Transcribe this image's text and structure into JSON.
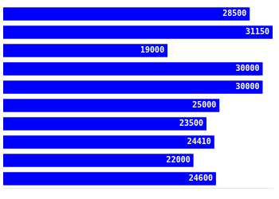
{
  "chart_data": {
    "type": "bar",
    "orientation": "horizontal",
    "categories": [
      null,
      null,
      null,
      null,
      null,
      null,
      null,
      null,
      null,
      null
    ],
    "values": [
      28500,
      31150,
      19000,
      30000,
      30000,
      25000,
      23500,
      24410,
      22000,
      24600
    ],
    "color": "#0000FF",
    "xlim": [
      0,
      31150
    ],
    "grid": false,
    "tick_labels": false,
    "data_labels": true
  }
}
